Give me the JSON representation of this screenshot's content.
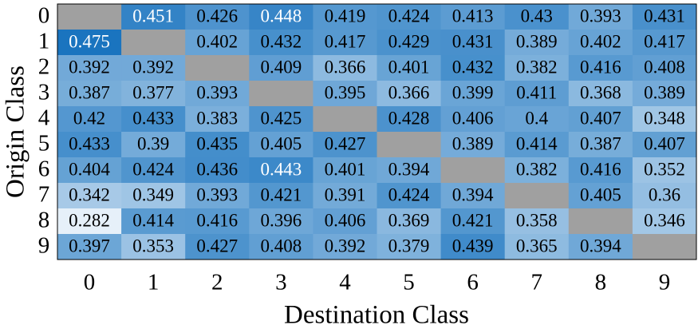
{
  "chart_data": {
    "type": "heatmap",
    "xlabel": "Destination Class",
    "ylabel": "Origin Class",
    "x": [
      0,
      1,
      2,
      3,
      4,
      5,
      6,
      7,
      8,
      9
    ],
    "y": [
      0,
      1,
      2,
      3,
      4,
      5,
      6,
      7,
      8,
      9
    ],
    "values": [
      [
        null,
        0.451,
        0.426,
        0.448,
        0.419,
        0.424,
        0.413,
        0.43,
        0.393,
        0.431
      ],
      [
        0.475,
        null,
        0.402,
        0.432,
        0.417,
        0.429,
        0.431,
        0.389,
        0.402,
        0.417
      ],
      [
        0.392,
        0.392,
        null,
        0.409,
        0.366,
        0.401,
        0.432,
        0.382,
        0.416,
        0.408
      ],
      [
        0.387,
        0.377,
        0.393,
        null,
        0.395,
        0.366,
        0.399,
        0.411,
        0.368,
        0.389
      ],
      [
        0.42,
        0.433,
        0.383,
        0.425,
        null,
        0.428,
        0.406,
        0.4,
        0.407,
        0.348
      ],
      [
        0.433,
        0.39,
        0.435,
        0.405,
        0.427,
        null,
        0.389,
        0.414,
        0.387,
        0.407
      ],
      [
        0.404,
        0.424,
        0.436,
        0.443,
        0.401,
        0.394,
        null,
        0.382,
        0.416,
        0.352
      ],
      [
        0.342,
        0.349,
        0.393,
        0.421,
        0.391,
        0.424,
        0.394,
        null,
        0.405,
        0.36
      ],
      [
        0.282,
        0.414,
        0.416,
        0.396,
        0.406,
        0.369,
        0.421,
        0.358,
        null,
        0.346
      ],
      [
        0.397,
        0.353,
        0.427,
        0.408,
        0.392,
        0.379,
        0.439,
        0.365,
        0.394,
        null
      ]
    ],
    "colormap": [
      "#e6f0f9",
      "#1a74bf"
    ],
    "null_color": "#a0a0a0"
  }
}
